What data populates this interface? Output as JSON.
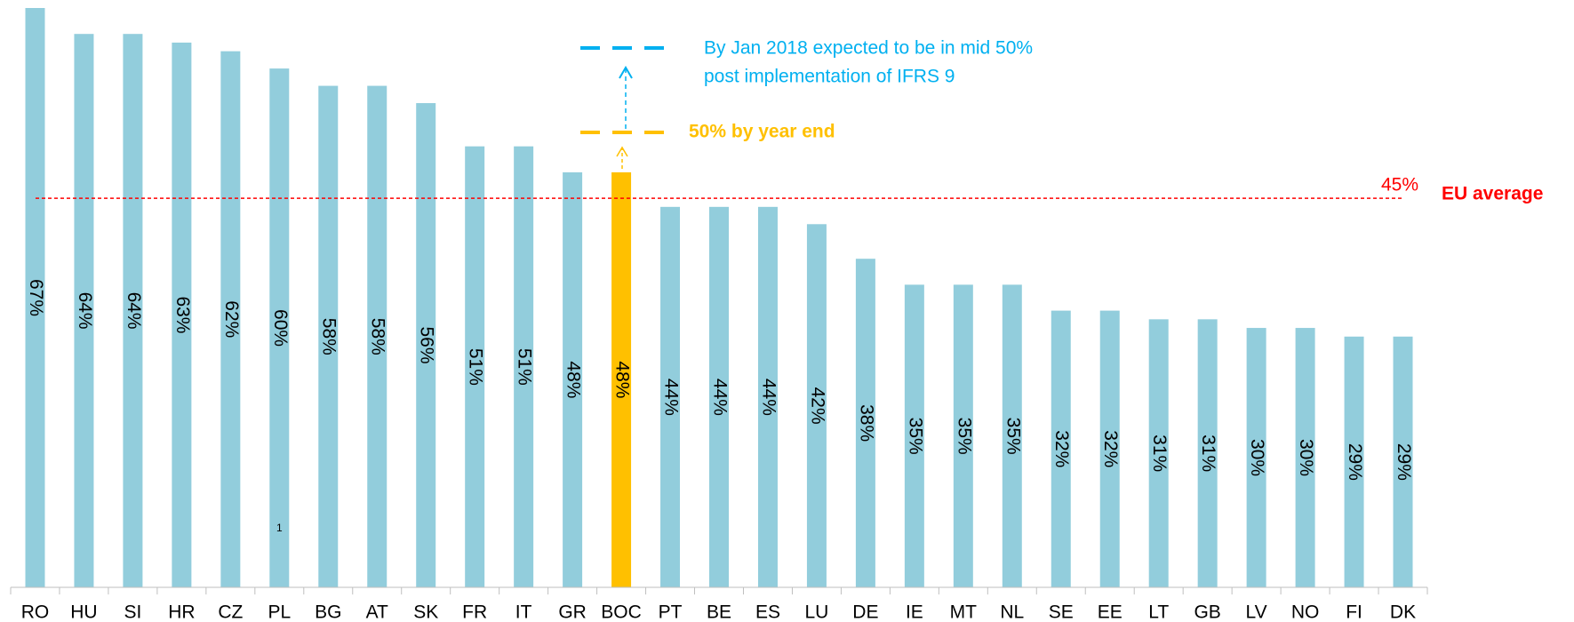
{
  "chart_data": {
    "type": "bar",
    "categories": [
      "RO",
      "HU",
      "SI",
      "HR",
      "CZ",
      "PL",
      "BG",
      "AT",
      "SK",
      "FR",
      "IT",
      "GR",
      "BOC",
      "PT",
      "BE",
      "ES",
      "LU",
      "DE",
      "IE",
      "MT",
      "NL",
      "SE",
      "EE",
      "LT",
      "GB",
      "LV",
      "NO",
      "FI",
      "DK"
    ],
    "values": [
      67,
      64,
      64,
      63,
      62,
      60,
      58,
      58,
      56,
      51,
      51,
      48,
      48,
      44,
      44,
      44,
      42,
      38,
      35,
      35,
      35,
      32,
      32,
      31,
      31,
      30,
      30,
      29,
      29
    ],
    "value_labels": [
      "67%",
      "64%",
      "64%",
      "63%",
      "62%",
      "60%",
      "58%",
      "58%",
      "56%",
      "51%",
      "51%",
      "48%",
      "48%",
      "44%",
      "44%",
      "44%",
      "42%",
      "38%",
      "35%",
      "35%",
      "35%",
      "32%",
      "32%",
      "31%",
      "31%",
      "30%",
      "30%",
      "29%",
      "29%"
    ],
    "colors": [
      "#92cddc",
      "#92cddc",
      "#92cddc",
      "#92cddc",
      "#92cddc",
      "#92cddc",
      "#92cddc",
      "#92cddc",
      "#92cddc",
      "#92cddc",
      "#92cddc",
      "#92cddc",
      "#ffc000",
      "#92cddc",
      "#92cddc",
      "#92cddc",
      "#92cddc",
      "#92cddc",
      "#92cddc",
      "#92cddc",
      "#92cddc",
      "#92cddc",
      "#92cddc",
      "#92cddc",
      "#92cddc",
      "#92cddc",
      "#92cddc",
      "#92cddc",
      "#92cddc"
    ],
    "ylim": [
      0,
      67
    ],
    "reference_line": {
      "value": 45,
      "label": "45%",
      "name": "EU average",
      "color": "#ff0000"
    },
    "annotations": {
      "expected_line1": "By Jan 2018 expected to be in mid 50%",
      "expected_line2": "post implementation of IFRS 9",
      "year_end": "50% by year end",
      "footnote": "1"
    }
  }
}
